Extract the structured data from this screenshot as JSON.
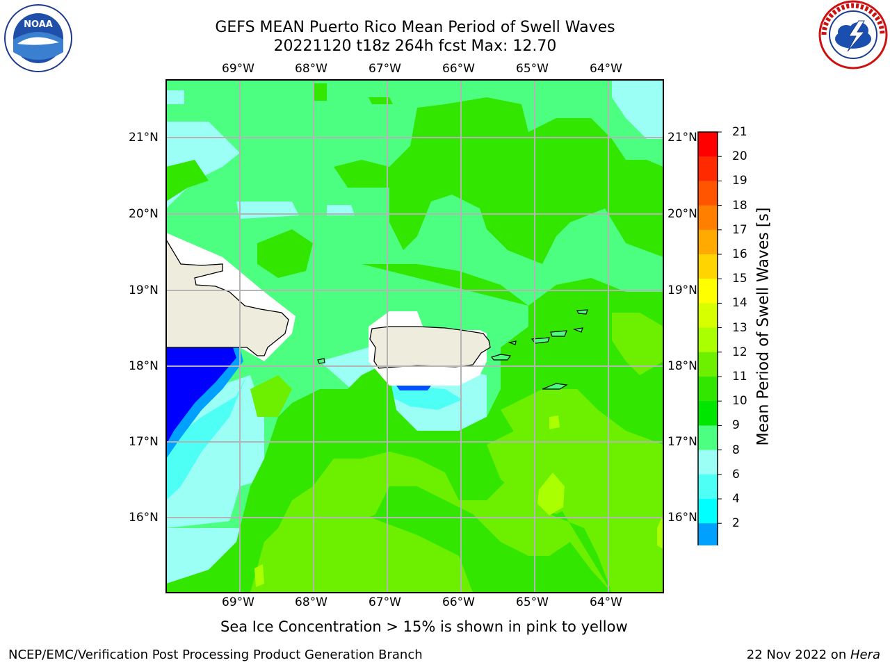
{
  "title": {
    "line1": "GEFS MEAN Puerto Rico Mean Period of Swell Waves",
    "line2": "20221120 t18z 264h fcst   Max: 12.70"
  },
  "logos": {
    "left": {
      "text": "NOAA",
      "ring_text": "NATIONAL OCEANIC AND ATMOSPHERIC ADMINISTRATION · U.S. DEPARTMENT OF COMMERCE",
      "icon": "noaa-logo"
    },
    "right": {
      "ring_text": "NATIONAL WEATHER SERVICE",
      "icon": "nws-logo"
    }
  },
  "map": {
    "lon_labels": [
      "69°W",
      "68°W",
      "67°W",
      "66°W",
      "65°W",
      "64°W"
    ],
    "lat_labels": [
      "21°N",
      "20°N",
      "19°N",
      "18°N",
      "17°N",
      "16°N"
    ],
    "land_color": "#eeecdc",
    "grid_color": "#b4b4b4"
  },
  "colorbar": {
    "label": "Mean Period of Swell Waves [s]",
    "ticks": [
      "21",
      "20",
      "19",
      "18",
      "17",
      "16",
      "15",
      "14",
      "13",
      "12",
      "11",
      "10",
      "9",
      "8",
      "6",
      "4",
      "2"
    ],
    "colors": [
      "#ff0000",
      "#ff2a00",
      "#ff5500",
      "#ff8000",
      "#ffaa00",
      "#ffd400",
      "#ffff00",
      "#d7ff00",
      "#aaff00",
      "#6cf000",
      "#32e600",
      "#00e600",
      "#4dff80",
      "#9cfff5",
      "#4dfff5",
      "#00ffff",
      "#00a0ff",
      "#0000ff"
    ]
  },
  "subtitle": "Sea Ice Concentration > 15% is shown in pink to yellow",
  "footer": {
    "left": "NCEP/EMC/Verification Post Processing Product Generation Branch",
    "right_date": "22 Nov 2022 on ",
    "right_host": "Hera"
  }
}
